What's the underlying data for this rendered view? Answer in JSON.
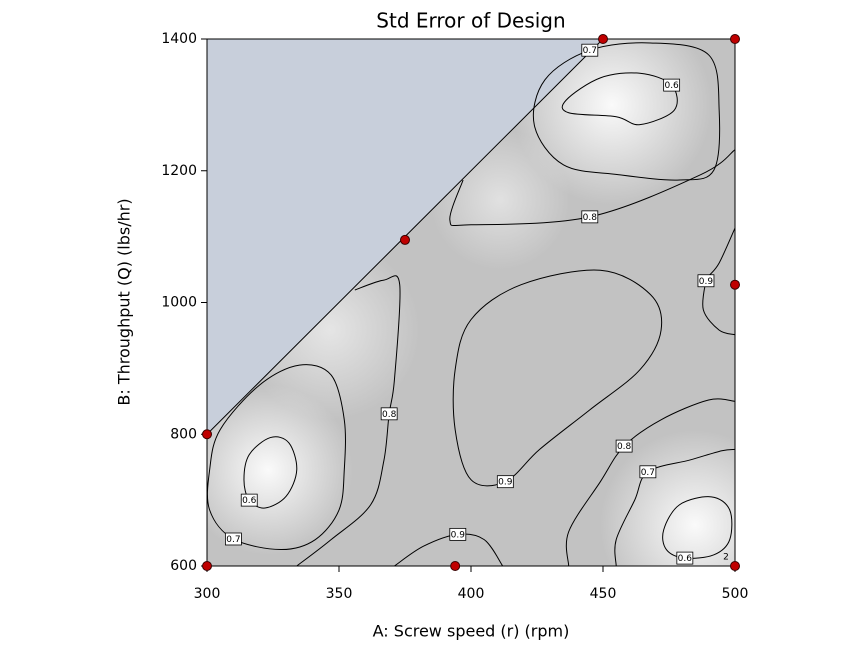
{
  "chart_data": {
    "type": "contour",
    "title": "Std Error of Design",
    "x_label": "A: Screw speed (r) (rpm)",
    "y_label": "B: Throughput (Q) (lbs/hr)",
    "xlim": [
      300,
      500
    ],
    "ylim": [
      600,
      1400
    ],
    "xticks": [
      300,
      350,
      400,
      450,
      500
    ],
    "yticks": [
      600,
      800,
      1000,
      1200,
      1400
    ],
    "infeasible_region": {
      "x": [
        300,
        450,
        300
      ],
      "y": [
        800,
        1400,
        1400
      ],
      "color": "#c8cfdb"
    },
    "contours": [
      {
        "level": 0.6,
        "closed": true,
        "x": [
          437,
          436,
          449,
          464,
          476,
          477,
          464,
          455
        ],
        "y": [
          1288,
          1307,
          1341,
          1348,
          1330,
          1292,
          1270,
          1282
        ]
      },
      {
        "level": 0.7,
        "closed": true,
        "x": [
          479,
          456,
          435,
          424,
          428,
          445,
          468,
          490,
          494,
          492
        ],
        "y": [
          1186,
          1194,
          1209,
          1269,
          1338,
          1383,
          1394,
          1376,
          1292,
          1201
        ]
      },
      {
        "level": 0.8,
        "closed": false,
        "x": [
          397,
          392,
          400,
          445,
          487,
          500
        ],
        "y": [
          1186,
          1125,
          1118,
          1130,
          1194,
          1232
        ]
      },
      {
        "level": 0.9,
        "closed": false,
        "x": [
          500,
          494,
          490,
          489,
          488,
          494,
          500
        ],
        "y": [
          1113,
          1060,
          1040,
          1033,
          989,
          958,
          951
        ]
      },
      {
        "level": 0.9,
        "closed": true,
        "x": [
          449,
          468,
          472,
          464,
          445,
          426,
          413,
          400,
          394,
          394,
          400,
          419
        ],
        "y": [
          1049,
          1012,
          958,
          898,
          837,
          777,
          728,
          731,
          807,
          898,
          974,
          1027
        ]
      },
      {
        "level": 0.8,
        "closed": false,
        "x": [
          356,
          367,
          373,
          371,
          369,
          367,
          362,
          347,
          334
        ],
        "y": [
          1019,
          1034,
          1027,
          883,
          831,
          760,
          693,
          640,
          600
        ]
      },
      {
        "level": 0.7,
        "closed": true,
        "x": [
          347,
          352,
          352,
          350,
          341,
          328,
          310,
          301,
          301,
          305,
          320,
          335
        ],
        "y": [
          890,
          822,
          746,
          685,
          640,
          625,
          641,
          685,
          746,
          807,
          875,
          905
        ]
      },
      {
        "level": 0.6,
        "closed": true,
        "x": [
          331,
          334,
          330,
          322,
          316,
          314,
          316,
          324
        ],
        "y": [
          787,
          746,
          706,
          688,
          700,
          731,
          769,
          795
        ]
      },
      {
        "level": 0.9,
        "closed": false,
        "x": [
          371,
          382,
          395,
          405,
          412
        ],
        "y": [
          600,
          630,
          648,
          640,
          600
        ]
      },
      {
        "level": 0.8,
        "closed": false,
        "x": [
          437,
          437,
          449,
          458,
          472,
          490,
          500
        ],
        "y": [
          600,
          652,
          728,
          782,
          822,
          852,
          850
        ]
      },
      {
        "level": 0.7,
        "closed": false,
        "x": [
          455,
          455,
          462,
          467,
          483,
          495,
          500
        ],
        "y": [
          600,
          640,
          700,
          743,
          761,
          775,
          777
        ]
      },
      {
        "level": 0.6,
        "closed": true,
        "x": [
          491,
          498,
          498,
          492,
          481,
          474,
          473,
          479
        ],
        "y": [
          705,
          685,
          640,
          617,
          612,
          625,
          655,
          693
        ]
      }
    ],
    "design_points": {
      "x": [
        300,
        300,
        375,
        450,
        500,
        500,
        394,
        500
      ],
      "y": [
        600,
        800,
        1095,
        1400,
        1400,
        1027,
        600,
        600
      ],
      "labels": [
        null,
        null,
        null,
        null,
        null,
        null,
        null,
        "2"
      ],
      "color": "#c00000"
    }
  }
}
